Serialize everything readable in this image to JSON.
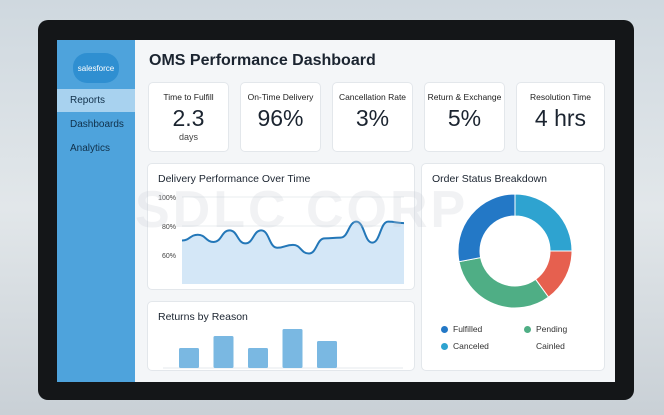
{
  "sidebar": {
    "logo": "salesforce",
    "items": [
      {
        "label": "Reports",
        "active": true
      },
      {
        "label": "Dashboards"
      },
      {
        "label": "Analytics"
      }
    ]
  },
  "header": {
    "title": "OMS Performance Dashboard"
  },
  "kpis": [
    {
      "label": "Time to Fulfill",
      "value": "2.3",
      "unit": "days"
    },
    {
      "label": "On-Time Delivery",
      "value": "96%"
    },
    {
      "label": "Cancellation Rate",
      "value": "3%"
    },
    {
      "label": "Return & Exchange",
      "value": "5%"
    },
    {
      "label": "Resolution Time",
      "value": "4 hrs"
    }
  ],
  "watermark": "SDLC CORP",
  "chart_data": [
    {
      "type": "area",
      "title": "Delivery Performance Over Time",
      "yticks": [
        "100%",
        "80%",
        "60%"
      ],
      "ylim": [
        45,
        100
      ],
      "grid": true,
      "values": [
        70,
        74,
        69,
        77,
        68,
        77,
        65,
        67,
        61,
        71.5,
        72,
        83,
        68.5,
        83,
        82
      ],
      "colors": {
        "line": "#2377b8",
        "fill": "#d4e7f7"
      }
    },
    {
      "type": "pie",
      "title": "Order Status Breakdown",
      "donut": true,
      "slices": [
        {
          "name": "Canceled",
          "value": 25,
          "color": "#2ea3d0"
        },
        {
          "name": "",
          "value": 15,
          "color": "#e6604f"
        },
        {
          "name": "Pending",
          "value": 32,
          "color": "#4fae85"
        },
        {
          "name": "Fulfilled",
          "value": 28,
          "color": "#2378c6"
        }
      ],
      "legend": [
        {
          "label": "Fulfilled",
          "color": "#2378c6"
        },
        {
          "label": "Pending",
          "color": "#4fae85"
        },
        {
          "label": "Canceled",
          "color": "#2ea3d0"
        },
        {
          "label": "Cainled",
          "color": null
        }
      ]
    },
    {
      "type": "bar",
      "title": "Returns by Reason",
      "values": [
        20,
        32,
        20,
        39,
        27
      ],
      "color": "#7ab8e2"
    }
  ]
}
